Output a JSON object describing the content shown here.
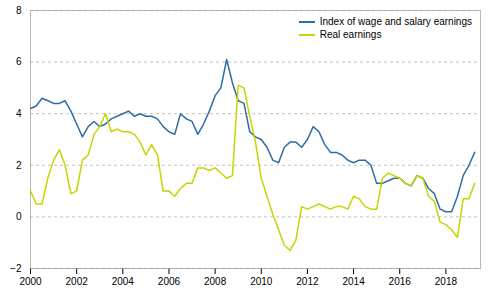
{
  "chart_data": {
    "type": "line",
    "x": [
      2000.0,
      2000.25,
      2000.5,
      2000.75,
      2001.0,
      2001.25,
      2001.5,
      2001.75,
      2002.0,
      2002.25,
      2002.5,
      2002.75,
      2003.0,
      2003.25,
      2003.5,
      2003.75,
      2004.0,
      2004.25,
      2004.5,
      2004.75,
      2005.0,
      2005.25,
      2005.5,
      2005.75,
      2006.0,
      2006.25,
      2006.5,
      2006.75,
      2007.0,
      2007.25,
      2007.5,
      2007.75,
      2008.0,
      2008.25,
      2008.5,
      2008.75,
      2009.0,
      2009.25,
      2009.5,
      2009.75,
      2010.0,
      2010.25,
      2010.5,
      2010.75,
      2011.0,
      2011.25,
      2011.5,
      2011.75,
      2012.0,
      2012.25,
      2012.5,
      2012.75,
      2013.0,
      2013.25,
      2013.5,
      2013.75,
      2014.0,
      2014.25,
      2014.5,
      2014.75,
      2015.0,
      2015.25,
      2015.5,
      2015.75,
      2016.0,
      2016.25,
      2016.5,
      2016.75,
      2017.0,
      2017.25,
      2017.5,
      2017.75,
      2018.0,
      2018.25,
      2018.5,
      2018.75,
      2019.0,
      2019.25
    ],
    "series": [
      {
        "name": "Index of wage and salary earnings",
        "color": "#2e6da4",
        "values": [
          4.2,
          4.3,
          4.6,
          4.5,
          4.4,
          4.4,
          4.5,
          4.1,
          3.6,
          3.1,
          3.5,
          3.7,
          3.5,
          3.6,
          3.8,
          3.9,
          4.0,
          4.1,
          3.9,
          4.0,
          3.9,
          3.9,
          3.8,
          3.5,
          3.3,
          3.2,
          4.0,
          3.8,
          3.7,
          3.2,
          3.6,
          4.1,
          4.7,
          5.0,
          6.1,
          5.2,
          4.5,
          4.4,
          3.3,
          3.1,
          3.0,
          2.7,
          2.2,
          2.1,
          2.7,
          2.9,
          2.9,
          2.7,
          3.0,
          3.5,
          3.3,
          2.8,
          2.5,
          2.5,
          2.4,
          2.2,
          2.1,
          2.2,
          2.2,
          2.0,
          1.3,
          1.3,
          1.4,
          1.5,
          1.5,
          1.3,
          1.2,
          1.6,
          1.5,
          1.1,
          0.9,
          0.3,
          0.2,
          0.2,
          0.8,
          1.6,
          2.0,
          2.5
        ]
      },
      {
        "name": "Real earnings",
        "color": "#c8d400",
        "values": [
          1.0,
          0.5,
          0.5,
          1.5,
          2.2,
          2.6,
          2.0,
          0.9,
          1.0,
          2.2,
          2.4,
          3.2,
          3.5,
          4.0,
          3.3,
          3.4,
          3.3,
          3.3,
          3.2,
          2.9,
          2.4,
          2.8,
          2.4,
          1.0,
          1.0,
          0.8,
          1.1,
          1.3,
          1.3,
          1.9,
          1.9,
          1.8,
          1.9,
          1.7,
          1.5,
          1.6,
          5.1,
          5.0,
          3.9,
          2.9,
          1.5,
          0.8,
          0.1,
          -0.5,
          -1.1,
          -1.3,
          -0.9,
          0.4,
          0.3,
          0.4,
          0.5,
          0.4,
          0.3,
          0.4,
          0.4,
          0.3,
          0.8,
          0.7,
          0.4,
          0.3,
          0.3,
          1.5,
          1.7,
          1.6,
          1.5,
          1.3,
          1.2,
          1.6,
          1.5,
          0.8,
          0.6,
          -0.2,
          -0.3,
          -0.5,
          -0.8,
          0.7,
          0.7,
          1.3
        ]
      }
    ],
    "xlim": [
      2000,
      2019.5
    ],
    "ylim": [
      -2,
      8
    ],
    "xticks": [
      2000,
      2002,
      2004,
      2006,
      2008,
      2010,
      2012,
      2014,
      2016,
      2018
    ],
    "yticks": [
      -2,
      0,
      2,
      4,
      6,
      8
    ],
    "grid": true,
    "legend": "upper right"
  }
}
